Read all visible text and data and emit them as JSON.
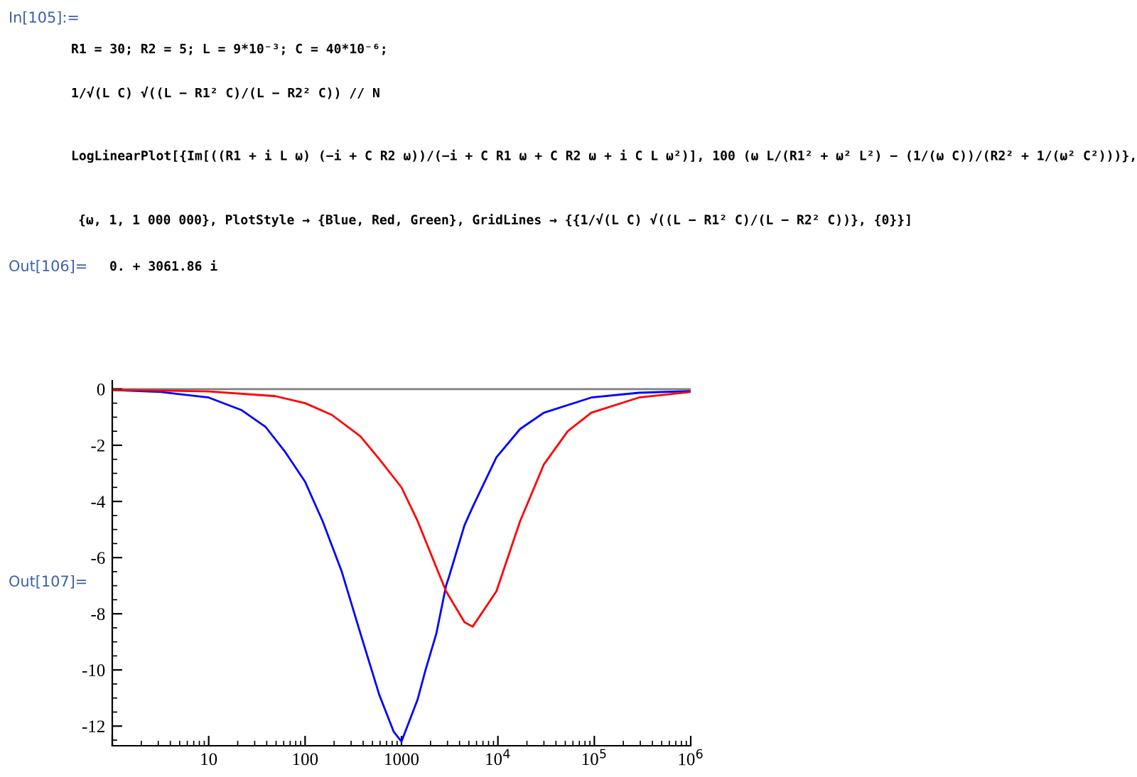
{
  "chart_data": {
    "type": "line",
    "log": "x",
    "xlim": [
      1,
      1000000
    ],
    "ylim": [
      -12.7,
      0.3
    ],
    "xticks": [
      {
        "value": 1,
        "label": null
      },
      10,
      100,
      1000,
      {
        "value": 10000,
        "label": "10$^{4}$"
      },
      {
        "value": 100000,
        "label": "10$^{5}$"
      },
      {
        "value": 1000000,
        "label": "10$^{6}$"
      }
    ],
    "yticks": [
      -12,
      -10,
      -8,
      -6,
      -4,
      -2,
      0
    ],
    "grid": false,
    "legend": false,
    "line_style": "solid",
    "marker": "none",
    "ref_lines": [
      {
        "axis": "y",
        "value": 0,
        "label": null,
        "color": "#808080"
      }
    ],
    "series": [
      {
        "color": "#0000ff",
        "x": [
          1,
          3.2,
          10,
          22,
          39,
          61,
          100,
          152,
          240,
          375,
          590,
          830,
          1000,
          1470,
          1760,
          2300,
          2900,
          3100,
          4500,
          5470,
          9650,
          17000,
          30000,
          93000,
          290000,
          1000000
        ],
        "values": [
          -0.03,
          -0.1,
          -0.3,
          -0.75,
          -1.35,
          -2.2,
          -3.3,
          -4.7,
          -6.5,
          -8.7,
          -10.9,
          -12.2,
          -12.55,
          -11.05,
          -10.05,
          -8.7,
          -7.0,
          -6.7,
          -4.85,
          -4.2,
          -2.43,
          -1.42,
          -0.84,
          -0.3,
          -0.13,
          -0.07
        ]
      },
      {
        "color": "#ff0000",
        "x": [
          1,
          10,
          49,
          100,
          190,
          375,
          590,
          1000,
          1470,
          2300,
          2900,
          4500,
          5470,
          9650,
          17000,
          30000,
          53000,
          93000,
          290000,
          1000000
        ],
        "values": [
          -0.03,
          -0.08,
          -0.25,
          -0.5,
          -0.92,
          -1.68,
          -2.5,
          -3.5,
          -4.7,
          -6.35,
          -7.2,
          -8.3,
          -8.46,
          -7.2,
          -4.7,
          -2.68,
          -1.5,
          -0.84,
          -0.3,
          -0.1
        ]
      }
    ],
    "annotations": [
      "In[105]:=",
      "R1 = 30; R2 = 5; L = 9*10⁻³; C = 40*10⁻⁶;",
      "1/√(L C) √((L − R1² C)/(L − R2² C)) // N",
      "LogLinearPlot[{Im[((R1 + i L ω) (−i + C R2 ω))/(−i + C R1 ω + C R2 ω + i C L ω²)], 100 (ω L/(R1² + ω² L²) − (1/(ω C))/(R2² + 1/(ω² C²)))},",
      "{ω, 1, 1 000 000}, PlotStyle → {Blue, Red, Green}, GridLines → {{1/√(L C) √((L − R1² C)/(L − R2² C))}, {0}}]",
      "Out[106]=",
      "0. + 3061.86 i",
      "Out[107]="
    ]
  }
}
